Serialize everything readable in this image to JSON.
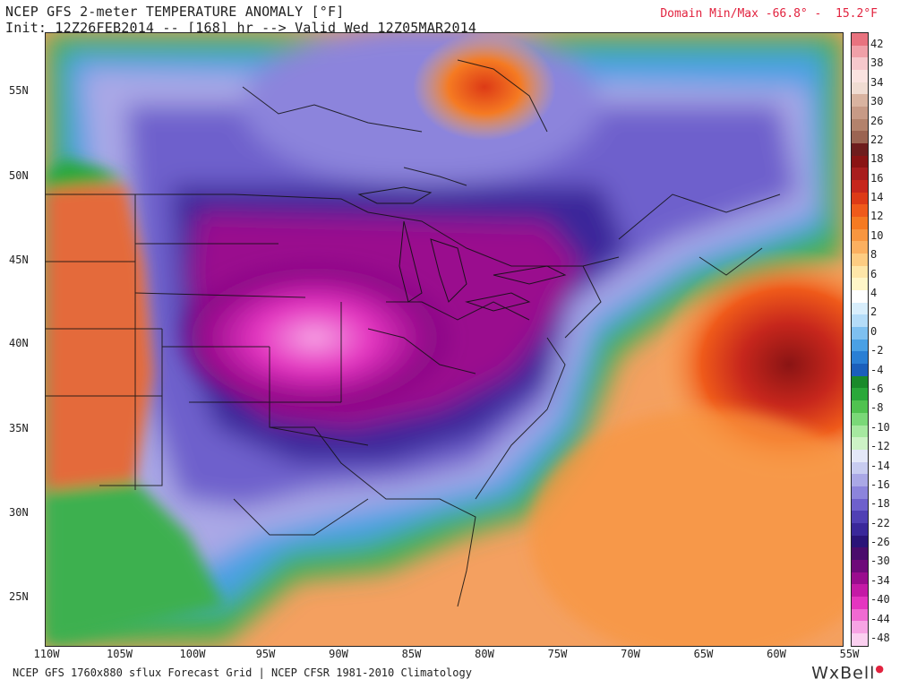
{
  "title": {
    "line1": "NCEP GFS 2-meter TEMPERATURE ANOMALY [°F]",
    "line2": "Init: 12Z26FEB2014 -- [168] hr --> Valid Wed 12Z05MAR2014"
  },
  "domain_minmax": "Domain Min/Max -66.8° -  15.2°F",
  "lat_labels": [
    "55N",
    "50N",
    "45N",
    "40N",
    "35N",
    "30N",
    "25N"
  ],
  "lon_labels": [
    "110W",
    "105W",
    "100W",
    "95W",
    "90W",
    "85W",
    "80W",
    "75W",
    "70W",
    "65W",
    "60W",
    "55W"
  ],
  "footer": "NCEP GFS 1760x880 sflux Forecast Grid | NCEP CFSR 1981-2010 Climatology",
  "brand": "WxBell",
  "colorbar": {
    "labels": [
      "42",
      "38",
      "34",
      "30",
      "26",
      "22",
      "18",
      "16",
      "14",
      "12",
      "10",
      "8",
      "6",
      "4",
      "2",
      "0",
      "-2",
      "-4",
      "-6",
      "-8",
      "-10",
      "-12",
      "-14",
      "-16",
      "-18",
      "-22",
      "-26",
      "-30",
      "-34",
      "-40",
      "-44",
      "-48"
    ],
    "colors": [
      "#e8737f",
      "#f0a0a8",
      "#f6c8cc",
      "#fbe3e0",
      "#f0dcd2",
      "#d9b3a0",
      "#c79a86",
      "#b3826c",
      "#9b6452",
      "#6e1d1d",
      "#8a1414",
      "#a81e1e",
      "#c6261c",
      "#dd3a16",
      "#ef5a1a",
      "#f57a22",
      "#f89640",
      "#fbb060",
      "#fdcc82",
      "#fee6a8",
      "#fff6c8",
      "#ffffff",
      "#d8eefc",
      "#b4dcf8",
      "#7ec0f0",
      "#4aa0e4",
      "#2a7fd4",
      "#1b5fbb",
      "#1a8a2a",
      "#2aa83a",
      "#50c250",
      "#7ad878",
      "#a6e8a0",
      "#cdf2c6",
      "#e4e8f8",
      "#c8ccf0",
      "#aaa8e6",
      "#8c84dc",
      "#6e60cc",
      "#5040b4",
      "#3a289a",
      "#2a1478",
      "#4a0c6c",
      "#6e0a7a",
      "#9a0c8e",
      "#c41aa6",
      "#e436c0",
      "#f06ad2",
      "#f7a4e4",
      "#fbd0f0"
    ]
  },
  "map_colors": {
    "ocean_warm": "#d8582a",
    "ocean_mid": "#f4a060",
    "canada_green": "#3cb050",
    "purple": "#6a5acd",
    "deep_purple": "#4a2aa0",
    "magenta": "#b01ca0",
    "pink": "#f088e0",
    "hudson_orange": "#ec6b2c",
    "west_red": "#e46a3a"
  }
}
